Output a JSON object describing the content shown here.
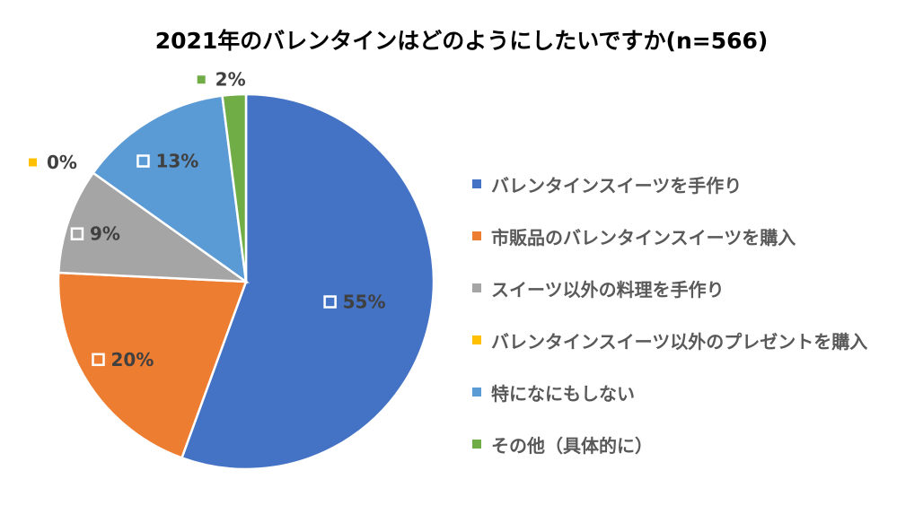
{
  "chart_data": {
    "type": "pie",
    "title": "2021年のバレンタインはどのようにしたいですか(n=566)",
    "categories": [
      "バレンタインスイーツを手作り",
      "市販品のバレンタインスイーツを購入",
      "スイーツ以外の料理を手作り",
      "バレンタインスイーツ以外のプレゼントを購入",
      "特になにもしない",
      "その他（具体的に）"
    ],
    "values": [
      55,
      20,
      9,
      0,
      13,
      2
    ],
    "data_labels": [
      "55%",
      "20%",
      "9%",
      "0%",
      "13%",
      "2%"
    ],
    "colors": [
      "#4472C4",
      "#ED7D31",
      "#A5A5A5",
      "#FFC000",
      "#5B9BD5",
      "#70AD47"
    ],
    "legend_position": "right"
  }
}
